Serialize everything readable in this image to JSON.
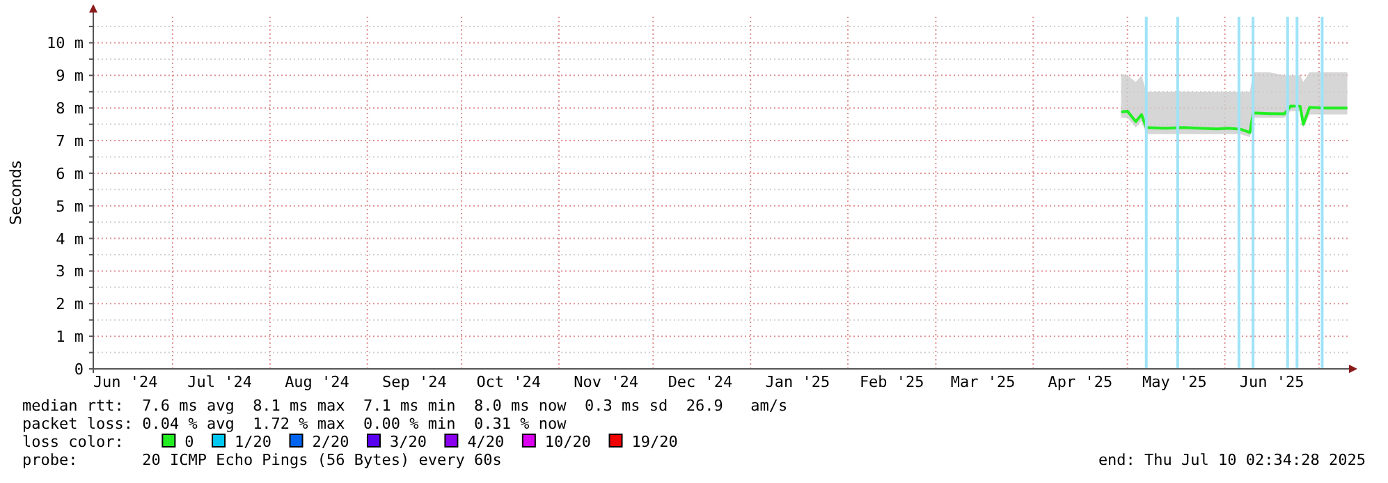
{
  "chart_data": {
    "type": "line",
    "ylabel": "Seconds",
    "legend": "bottom",
    "legend_title": "loss color:",
    "grid": true,
    "xlim": [
      "2024-06-05T18:00",
      "2025-07-10T02:34"
    ],
    "xticks": [
      {
        "value": "2024-06-16",
        "label": "Jun '24"
      },
      {
        "value": "2024-07-16",
        "label": "Jul '24"
      },
      {
        "value": "2024-08-16",
        "label": "Aug '24"
      },
      {
        "value": "2024-09-16",
        "label": "Sep '24"
      },
      {
        "value": "2024-10-16",
        "label": "Oct '24"
      },
      {
        "value": "2024-11-16",
        "label": "Nov '24"
      },
      {
        "value": "2024-12-16",
        "label": "Dec '24"
      },
      {
        "value": "2025-01-16",
        "label": "Jan '25"
      },
      {
        "value": "2025-02-15",
        "label": "Feb '25"
      },
      {
        "value": "2025-03-16",
        "label": "Mar '25"
      },
      {
        "value": "2025-04-16",
        "label": "Apr '25"
      },
      {
        "value": "2025-05-16",
        "label": "May '25"
      },
      {
        "value": "2025-06-16",
        "label": "Jun '25"
      }
    ],
    "ylim": [
      0,
      10.8
    ],
    "yticks": [
      {
        "value": 0,
        "label": "0"
      },
      {
        "value": 0.5,
        "label": null
      },
      {
        "value": 1,
        "label": "1 m"
      },
      {
        "value": 1.5,
        "label": null
      },
      {
        "value": 2,
        "label": "2 m"
      },
      {
        "value": 2.5,
        "label": null
      },
      {
        "value": 3,
        "label": "3 m"
      },
      {
        "value": 3.5,
        "label": null
      },
      {
        "value": 4,
        "label": "4 m"
      },
      {
        "value": 4.5,
        "label": null
      },
      {
        "value": 5,
        "label": "5 m"
      },
      {
        "value": 5.5,
        "label": null
      },
      {
        "value": 6,
        "label": "6 m"
      },
      {
        "value": 6.5,
        "label": null
      },
      {
        "value": 7,
        "label": "7 m"
      },
      {
        "value": 7.5,
        "label": null
      },
      {
        "value": 8,
        "label": "8 m"
      },
      {
        "value": 8.5,
        "label": null
      },
      {
        "value": 9,
        "label": "9 m"
      },
      {
        "value": 9.5,
        "label": null
      },
      {
        "value": 10,
        "label": "10 m"
      },
      {
        "value": 10.5,
        "label": null
      }
    ],
    "series": [
      {
        "name": "0",
        "color": "#22ee22",
        "x": [
          "2025-04-29",
          "2025-05-01",
          "2025-05-03T16:00",
          "2025-05-05T12:00",
          "2025-05-07",
          "2025-05-13",
          "2025-05-19",
          "2025-05-24",
          "2025-05-29T14:00",
          "2025-06-02",
          "2025-06-06",
          "2025-06-09",
          "2025-06-10",
          "2025-06-15",
          "2025-06-20",
          "2025-06-22",
          "2025-06-25",
          "2025-06-26",
          "2025-06-28",
          "2025-07-03",
          "2025-07-10"
        ],
        "values": [
          7.88,
          7.9,
          7.58,
          7.8,
          7.4,
          7.38,
          7.4,
          7.38,
          7.36,
          7.38,
          7.35,
          7.25,
          7.85,
          7.83,
          7.82,
          8.06,
          8.05,
          7.5,
          8.02,
          8.0,
          8.0
        ],
        "lower": [
          7.7,
          7.7,
          7.4,
          7.6,
          7.2,
          7.2,
          7.2,
          7.2,
          7.2,
          7.2,
          7.2,
          7.1,
          7.7,
          7.7,
          7.7,
          7.9,
          7.9,
          7.4,
          7.8,
          7.8,
          7.8
        ],
        "upper": [
          9.05,
          9.0,
          8.8,
          9.0,
          8.5,
          8.5,
          8.5,
          8.5,
          8.5,
          8.5,
          8.5,
          8.5,
          9.1,
          9.1,
          9.0,
          9.0,
          9.0,
          8.8,
          9.1,
          9.1,
          9.1
        ]
      },
      {
        "name": "1/20",
        "color": "#00c8f0"
      },
      {
        "name": "2/20",
        "color": "#0064f0"
      },
      {
        "name": "3/20",
        "color": "#5a00f0"
      },
      {
        "name": "4/20",
        "color": "#8c00f0"
      },
      {
        "name": "10/20",
        "color": "#dc00f0"
      },
      {
        "name": "19/20",
        "color": "#f00000"
      }
    ],
    "ref_lines": [
      {
        "axis": "x",
        "value": "2025-05-07",
        "color": "#9fe3f7"
      },
      {
        "axis": "x",
        "value": "2025-05-17",
        "color": "#9fe3f7"
      },
      {
        "axis": "x",
        "value": "2025-06-05T12:00",
        "color": "#9fe3f7"
      },
      {
        "axis": "x",
        "value": "2025-06-10",
        "color": "#9fe3f7"
      },
      {
        "axis": "x",
        "value": "2025-06-21",
        "color": "#9fe3f7"
      },
      {
        "axis": "x",
        "value": "2025-06-24",
        "color": "#9fe3f7"
      },
      {
        "axis": "x",
        "value": "2025-07-02",
        "color": "#9fe3f7"
      }
    ],
    "annotations": [
      "median rtt:  7.6 ms avg  8.1 ms max  7.1 ms min  8.0 ms now  0.3 ms sd  26.9   am/s",
      "packet loss: 0.04 % avg  1.72 % max  0.00 % min  0.31 % now",
      "probe:       20 ICMP Echo Pings (56 Bytes) every 60s",
      "end: Thu Jul 10 02:34:28 2025"
    ]
  }
}
